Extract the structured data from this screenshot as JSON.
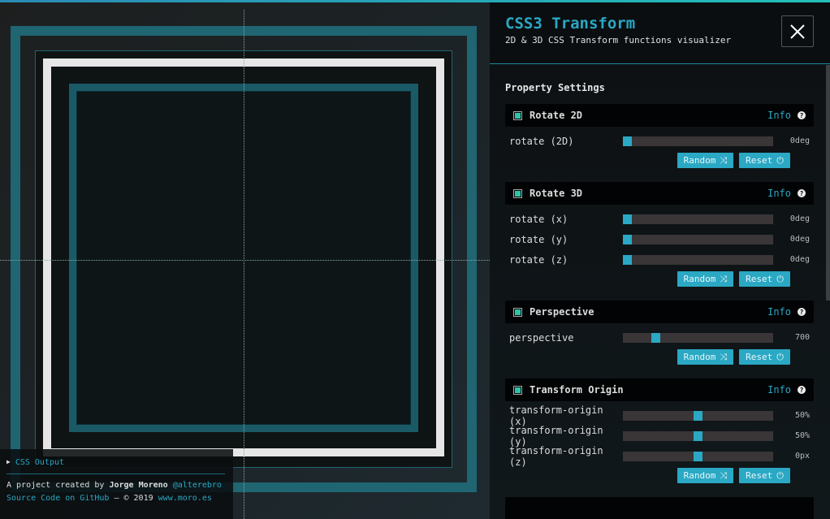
{
  "header": {
    "title": "CSS3 Transform",
    "subtitle": "2D & 3D CSS Transform functions visualizer",
    "close_icon": "close-icon"
  },
  "settings_title": "Property Settings",
  "sections": [
    {
      "title": "Rotate 2D",
      "info": "Info",
      "enabled": true,
      "controls": [
        {
          "label": "rotate (2D)",
          "value": "0deg",
          "fraction": 0
        }
      ]
    },
    {
      "title": "Rotate 3D",
      "info": "Info",
      "enabled": true,
      "controls": [
        {
          "label": "rotate (x)",
          "value": "0deg",
          "fraction": 0
        },
        {
          "label": "rotate (y)",
          "value": "0deg",
          "fraction": 0
        },
        {
          "label": "rotate (z)",
          "value": "0deg",
          "fraction": 0
        }
      ]
    },
    {
      "title": "Perspective",
      "info": "Info",
      "enabled": true,
      "controls": [
        {
          "label": "perspective",
          "value": "700",
          "fraction": 0.2
        }
      ]
    },
    {
      "title": "Transform Origin",
      "info": "Info",
      "enabled": true,
      "controls": [
        {
          "label": "transform-origin (x)",
          "value": "50%",
          "fraction": 0.5
        },
        {
          "label": "transform-origin (y)",
          "value": "50%",
          "fraction": 0.5
        },
        {
          "label": "transform-origin (z)",
          "value": "0px",
          "fraction": 0.5
        }
      ]
    }
  ],
  "buttons": {
    "random": "Random",
    "reset": "Reset"
  },
  "footer": {
    "css_output": "CSS Output",
    "created": "A project created by",
    "author": "Jorge Moreno",
    "handle": "@alterebro",
    "source": "Source Code on GitHub",
    "copyright": " — © 2019 ",
    "site": "www.moro.es"
  },
  "colors": {
    "accent": "#2aa8c4",
    "teal_frame": "#1f6572",
    "checkbox": "#2ec4a8"
  }
}
